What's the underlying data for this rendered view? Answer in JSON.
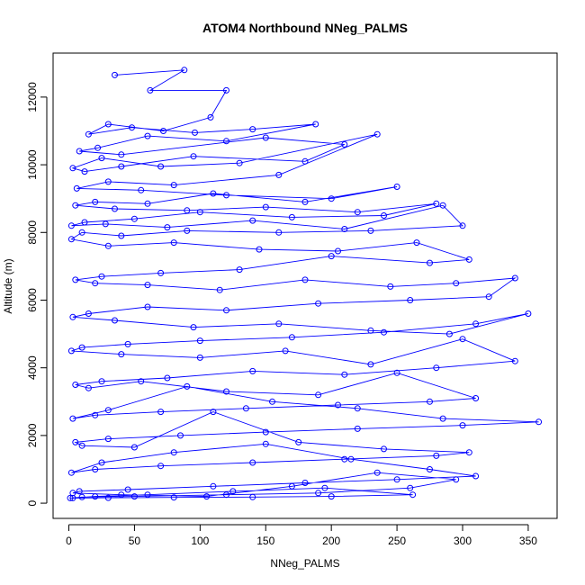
{
  "chart_data": {
    "type": "line",
    "title": "ATOM4 Northbound NNeg_PALMS",
    "xlabel": "NNeg_PALMS",
    "ylabel": "Altitude (m)",
    "xlim": [
      -12,
      372
    ],
    "ylim": [
      -450,
      13300
    ],
    "x_ticks": [
      0,
      50,
      100,
      150,
      200,
      250,
      300,
      350
    ],
    "y_ticks": [
      0,
      2000,
      4000,
      6000,
      8000,
      10000,
      12000
    ],
    "grid": false,
    "legend": "none",
    "color": "#0000ff",
    "marker": "open-circle",
    "series": [
      {
        "x": [
          35,
          88,
          62,
          120,
          108,
          72,
          30,
          15,
          48,
          96,
          140,
          188,
          120,
          60,
          22,
          8,
          40,
          150,
          210,
          180,
          95,
          40,
          12,
          3,
          25,
          70,
          130,
          235,
          160,
          80,
          30,
          6,
          55,
          120,
          200,
          250,
          180,
          110,
          60,
          20,
          5,
          35,
          90,
          150,
          220,
          280,
          240,
          170,
          100,
          50,
          12,
          2,
          28,
          75,
          140,
          210,
          285,
          300,
          230,
          160,
          90,
          40,
          10,
          2,
          30,
          80,
          145,
          205,
          265,
          305,
          275,
          200,
          130,
          70,
          25,
          5,
          20,
          60,
          115,
          180,
          245,
          295,
          340,
          320,
          260,
          190,
          120,
          60,
          15,
          3,
          35,
          95,
          160,
          230,
          290,
          350,
          310,
          240,
          170,
          100,
          45,
          10,
          2,
          40,
          100,
          165,
          230,
          300,
          340,
          280,
          210,
          140,
          75,
          25,
          5,
          15,
          55,
          120,
          190,
          250,
          310,
          275,
          205,
          135,
          70,
          20,
          3,
          30,
          90,
          155,
          220,
          285,
          358,
          300,
          220,
          150,
          85,
          30,
          5,
          10,
          50,
          110,
          175,
          240,
          305,
          280,
          210,
          140,
          70,
          20,
          2,
          25,
          80,
          150,
          215,
          275,
          310,
          250,
          180,
          110,
          45,
          8,
          3,
          40,
          105,
          170,
          235,
          295,
          260,
          190,
          120,
          50,
          10,
          1,
          20,
          60,
          125,
          195,
          262,
          200,
          140,
          80,
          30,
          3
        ],
        "y": [
          12650,
          12800,
          12200,
          12200,
          11400,
          11000,
          11200,
          10900,
          11100,
          10950,
          11050,
          11200,
          10700,
          10850,
          10500,
          10400,
          10300,
          10800,
          10600,
          10100,
          10250,
          9950,
          9800,
          9900,
          10200,
          9950,
          10050,
          10900,
          9700,
          9400,
          9500,
          9300,
          9250,
          9100,
          9000,
          9350,
          8900,
          9150,
          8850,
          8900,
          8800,
          8700,
          8650,
          8750,
          8600,
          8850,
          8500,
          8450,
          8600,
          8400,
          8300,
          8200,
          8250,
          8150,
          8350,
          8100,
          8800,
          8200,
          8050,
          8000,
          8050,
          7900,
          8000,
          7800,
          7600,
          7700,
          7500,
          7450,
          7700,
          7200,
          7100,
          7300,
          6900,
          6800,
          6700,
          6600,
          6500,
          6450,
          6300,
          6600,
          6400,
          6500,
          6650,
          6100,
          6000,
          5900,
          5700,
          5800,
          5600,
          5500,
          5400,
          5200,
          5300,
          5100,
          5000,
          5600,
          5300,
          5050,
          4900,
          4800,
          4700,
          4600,
          4500,
          4400,
          4300,
          4500,
          4100,
          4850,
          4200,
          4000,
          3800,
          3900,
          3700,
          3600,
          3500,
          3400,
          3600,
          3300,
          3200,
          3850,
          3100,
          3000,
          2900,
          2800,
          2700,
          2600,
          2500,
          2750,
          3450,
          3000,
          2800,
          2500,
          2400,
          2300,
          2200,
          2100,
          2000,
          1900,
          1800,
          1700,
          1650,
          2700,
          1800,
          1600,
          1500,
          1400,
          1300,
          1200,
          1100,
          1000,
          900,
          1200,
          1500,
          1750,
          1300,
          1000,
          800,
          700,
          600,
          500,
          400,
          350,
          300,
          250,
          200,
          500,
          900,
          700,
          450,
          300,
          250,
          200,
          180,
          150,
          200,
          250,
          350,
          450,
          250,
          200,
          180,
          170,
          160,
          150
        ]
      }
    ]
  }
}
